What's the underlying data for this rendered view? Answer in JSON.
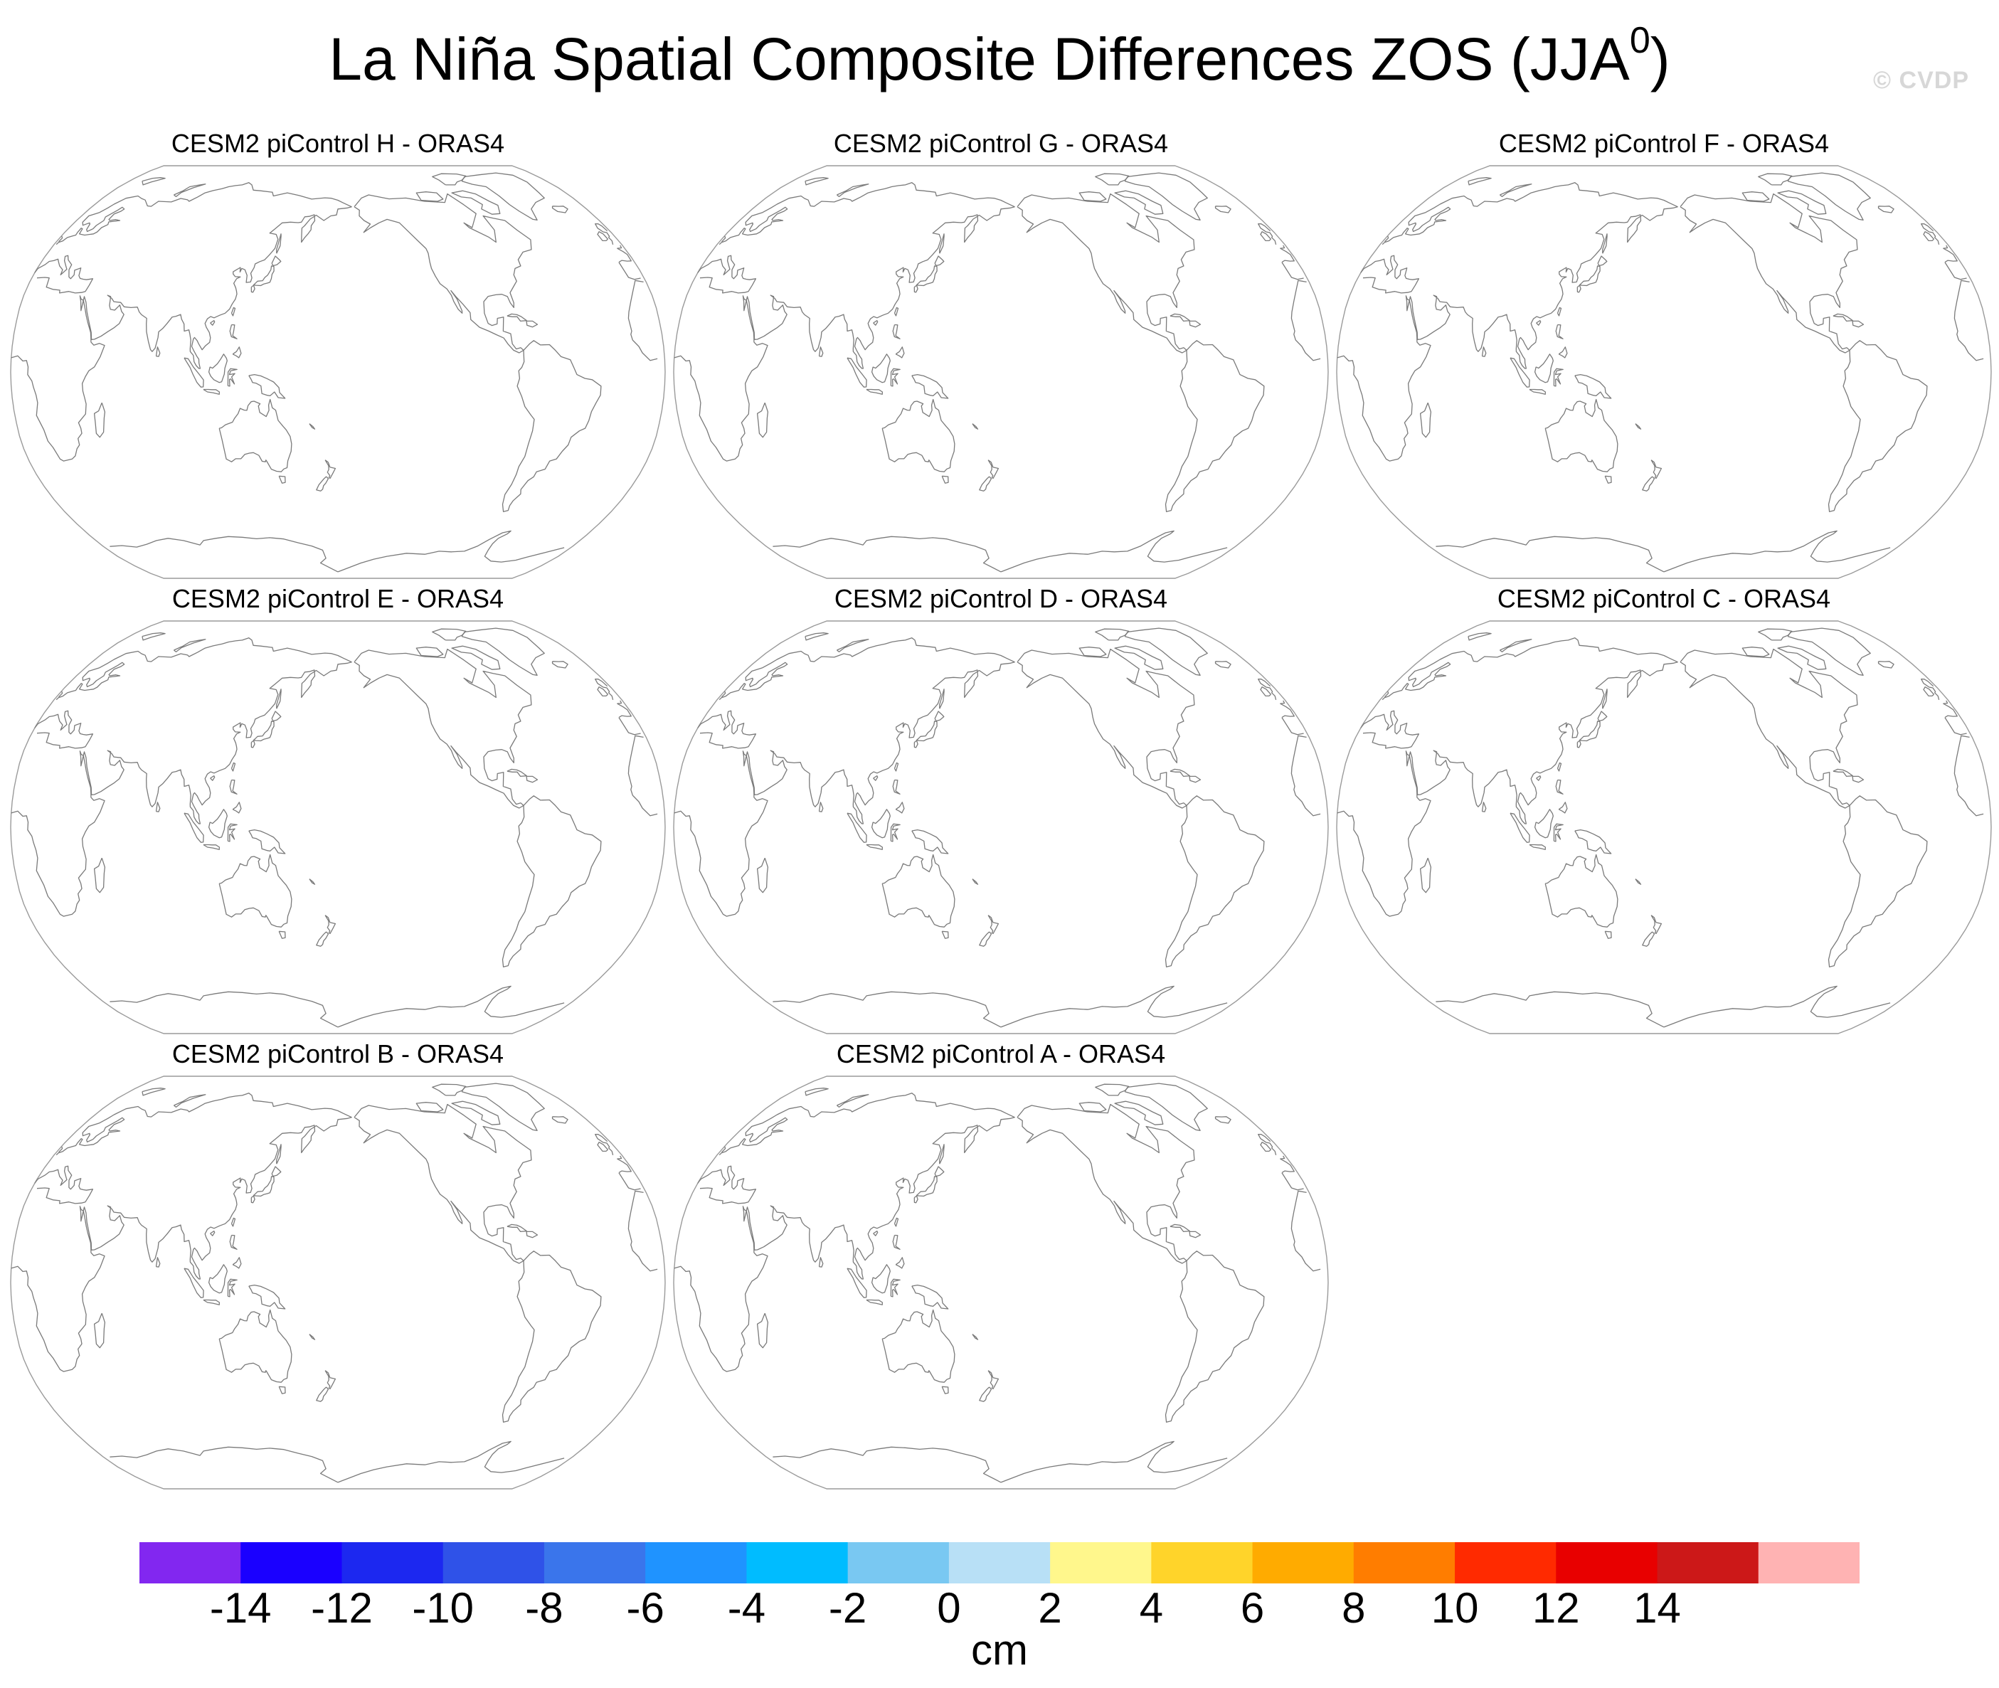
{
  "title": {
    "text": "La Niña Spatial Composite Differences ZOS (JJA",
    "superscript": "0",
    "close": ")"
  },
  "watermark": "© CVDP",
  "panels": [
    {
      "title": "CESM2 piControl H - ORAS4"
    },
    {
      "title": "CESM2 piControl G - ORAS4"
    },
    {
      "title": "CESM2 piControl F - ORAS4"
    },
    {
      "title": "CESM2 piControl E - ORAS4"
    },
    {
      "title": "CESM2 piControl D - ORAS4"
    },
    {
      "title": "CESM2 piControl C - ORAS4"
    },
    {
      "title": "CESM2 piControl B - ORAS4"
    },
    {
      "title": "CESM2 piControl A - ORAS4"
    }
  ],
  "map": {
    "projection": "robinson",
    "central_longitude": 180,
    "coastline_color": "#7a7a7a",
    "fill": "none"
  },
  "colorbar": {
    "units": "cm",
    "tick_labels": [
      "-14",
      "-12",
      "-10",
      "-8",
      "-6",
      "-4",
      "-2",
      "0",
      "2",
      "4",
      "6",
      "8",
      "10",
      "12",
      "14"
    ],
    "colors": [
      "#8227f0",
      "#1a00ff",
      "#1c28f0",
      "#2f52e8",
      "#3a75eb",
      "#1f93ff",
      "#00bcff",
      "#79c8f2",
      "#b8e0f6",
      "#fff78c",
      "#ffd42a",
      "#ffab00",
      "#ff7d00",
      "#ff2a00",
      "#e80000",
      "#cc1818",
      "#ffb3b3"
    ]
  }
}
